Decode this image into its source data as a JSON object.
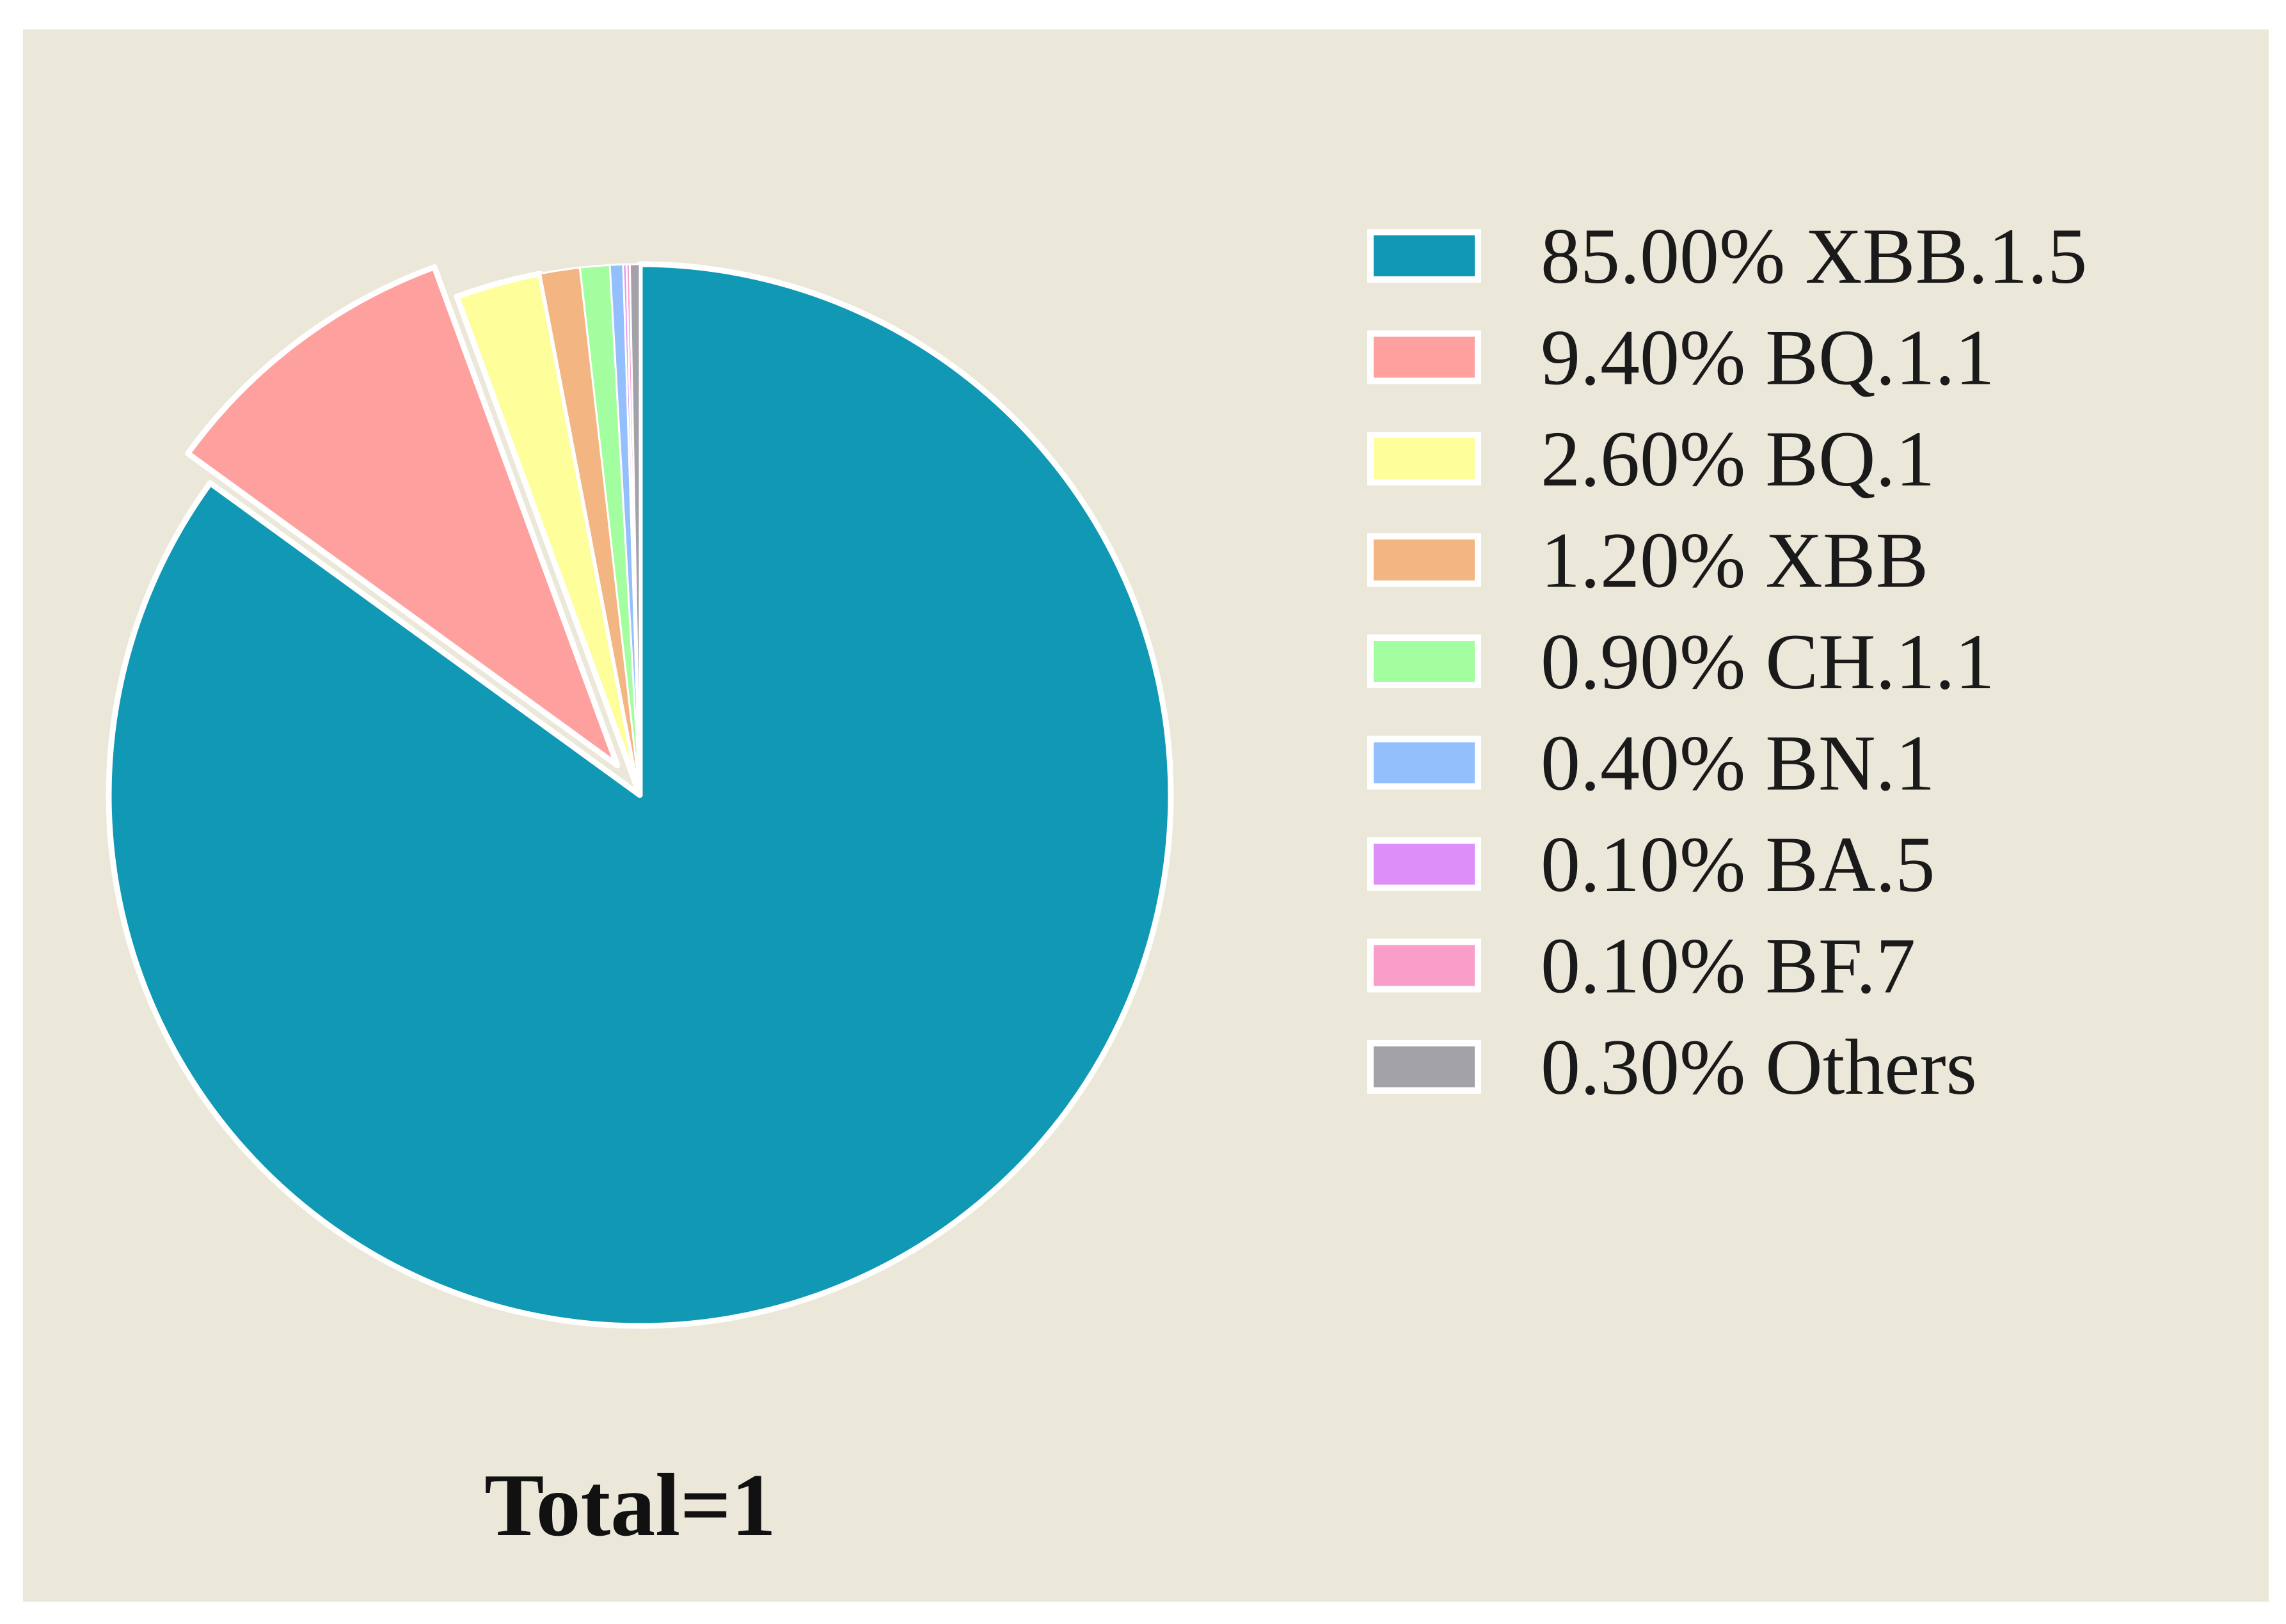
{
  "chart_data": {
    "type": "pie",
    "title": "",
    "total_label": "Total=1",
    "start_angle_deg": 90,
    "direction": "clockwise",
    "exploded_index": 1,
    "background": "#ebe7d9",
    "edge_color": "#ffffff",
    "legend_position": "right",
    "slices": [
      {
        "label": "XBB.1.5",
        "pct_label": "85.00%",
        "value": 85.0,
        "color": "#1198b4"
      },
      {
        "label": "BQ.1.1",
        "pct_label": "9.40%",
        "value": 9.4,
        "color": "#fea19e"
      },
      {
        "label": "BQ.1",
        "pct_label": "2.60%",
        "value": 2.6,
        "color": "#fefe9a"
      },
      {
        "label": "XBB",
        "pct_label": "1.20%",
        "value": 1.2,
        "color": "#f3b582"
      },
      {
        "label": "CH.1.1",
        "pct_label": "0.90%",
        "value": 0.9,
        "color": "#a3fe9f"
      },
      {
        "label": "BN.1",
        "pct_label": "0.40%",
        "value": 0.4,
        "color": "#93c0fd"
      },
      {
        "label": "BA.5",
        "pct_label": "0.10%",
        "value": 0.1,
        "color": "#de8ef9"
      },
      {
        "label": "BF.7",
        "pct_label": "0.10%",
        "value": 0.1,
        "color": "#f99ec9"
      },
      {
        "label": "Others",
        "pct_label": "0.30%",
        "value": 0.3,
        "color": "#a3a2a9"
      }
    ]
  }
}
